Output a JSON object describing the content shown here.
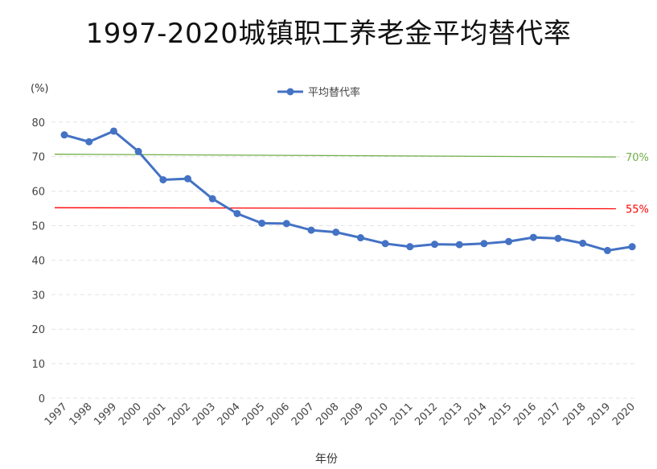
{
  "title": "1997-2020城镇职工养老金平均替代率",
  "chart_data": {
    "type": "line",
    "title": "1997-2020城镇职工养老金平均替代率",
    "ylabel": "(%)",
    "xlabel": "年份",
    "ylim": [
      0,
      80
    ],
    "yticks": [
      "0",
      "10",
      "20",
      "30",
      "40",
      "50",
      "60",
      "70",
      "80"
    ],
    "categories": [
      "1997",
      "1998",
      "1999",
      "2000",
      "2001",
      "2002",
      "2003",
      "2004",
      "2005",
      "2006",
      "2007",
      "2008",
      "2009",
      "2010",
      "2011",
      "2012",
      "2013",
      "2014",
      "2015",
      "2016",
      "2017",
      "2018",
      "2019",
      "2020"
    ],
    "series": [
      {
        "name": "平均替代率",
        "color": "#4472C4",
        "values": [
          76.3,
          74.3,
          77.4,
          71.5,
          63.3,
          63.6,
          57.8,
          53.5,
          50.7,
          50.6,
          48.7,
          48.1,
          46.5,
          44.8,
          43.9,
          44.6,
          44.5,
          44.8,
          45.4,
          46.6,
          46.3,
          44.9,
          42.8,
          43.9
        ]
      }
    ],
    "reference_lines": [
      {
        "label": "70%",
        "value_start": 70.7,
        "value_end": 69.9,
        "color": "#70AD47"
      },
      {
        "label": "55%",
        "value_start": 55.2,
        "value_end": 54.9,
        "color": "#FF0000"
      }
    ],
    "legend_position": "top",
    "grid": "horizontal-dashed"
  }
}
